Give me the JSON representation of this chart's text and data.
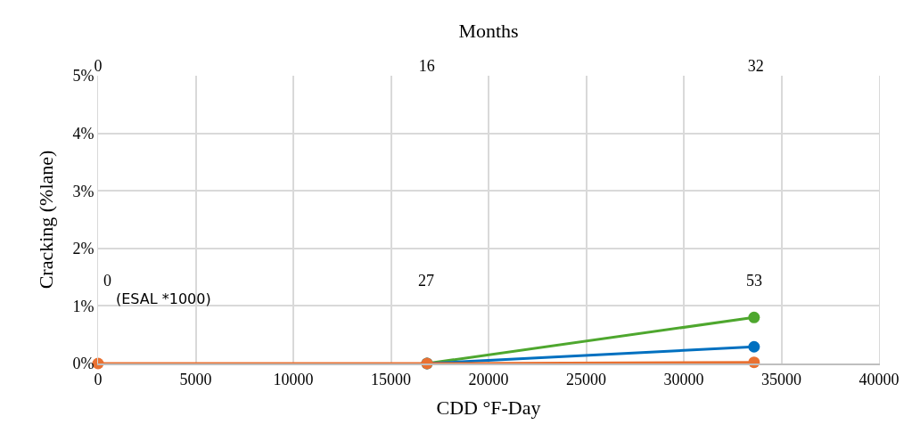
{
  "chart_data": {
    "type": "line",
    "xlabel": "CDD °F-Day",
    "ylabel": "Cracking (%lane)",
    "x2label": "Months",
    "xlim": [
      0,
      40000
    ],
    "xticks": [
      0,
      5000,
      10000,
      15000,
      20000,
      25000,
      30000,
      35000,
      40000
    ],
    "x2lim": [
      0,
      38
    ],
    "x2ticks": [
      0,
      16,
      32
    ],
    "ylim": [
      0,
      5
    ],
    "yticks": [
      {
        "value": 0,
        "label": "0%"
      },
      {
        "value": 1,
        "label": "1%"
      },
      {
        "value": 2,
        "label": "2%"
      },
      {
        "value": 3,
        "label": "3%"
      },
      {
        "value": 4,
        "label": "4%"
      },
      {
        "value": 5,
        "label": "5%"
      }
    ],
    "grid": true,
    "marker": "circle",
    "line_style": "solid",
    "series": [
      {
        "color": "#4ea72e",
        "x": [
          16850,
          33600
        ],
        "values": [
          0,
          0.8
        ]
      },
      {
        "color": "#0070c0",
        "x": [
          16850,
          33600
        ],
        "values": [
          0,
          0.29
        ]
      },
      {
        "color": "#e97132",
        "x": [
          0,
          16850,
          33600
        ],
        "values": [
          0,
          0,
          0.02
        ]
      }
    ],
    "annotations": [
      "0",
      "27",
      "53",
      "(ESAL *1000)"
    ]
  }
}
